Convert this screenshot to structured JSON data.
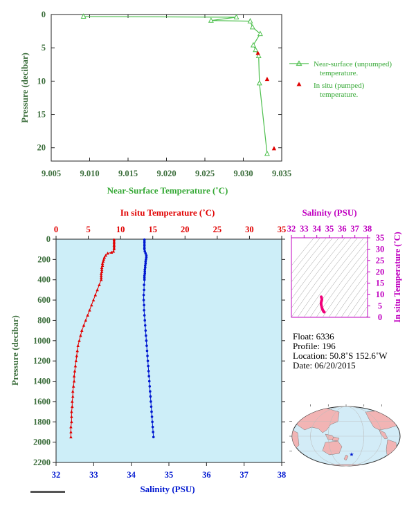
{
  "chart_data": [
    {
      "type": "line",
      "xlabel": "Near-Surface Temperature (˚C)",
      "ylabel": "Pressure (decibar)",
      "xlim": [
        9.005,
        9.035
      ],
      "ylim": [
        0,
        22
      ],
      "xticks": [
        "9.005",
        "9.010",
        "9.015",
        "9.020",
        "9.025",
        "9.030",
        "9.035"
      ],
      "yticks": [
        "0",
        "5",
        "10",
        "15",
        "20"
      ],
      "y_inverted": true,
      "legend_position": "right",
      "colors": {
        "near_surface": "#4cbf4c",
        "in_situ": "#e00000",
        "axis_text": "#3c6e3c"
      },
      "series": [
        {
          "name": "Near-surface (unpumped) temperature.",
          "marker": "open-triangle",
          "points": [
            {
              "t": 9.0092,
              "p": 0.3
            },
            {
              "t": 9.0291,
              "p": 0.4
            },
            {
              "t": 9.0258,
              "p": 0.9
            },
            {
              "t": 9.0309,
              "p": 1.0
            },
            {
              "t": 9.0312,
              "p": 1.9
            },
            {
              "t": 9.0322,
              "p": 2.9
            },
            {
              "t": 9.0313,
              "p": 4.6
            },
            {
              "t": 9.0316,
              "p": 5.3
            },
            {
              "t": 9.032,
              "p": 6.2
            },
            {
              "t": 9.0321,
              "p": 10.3
            },
            {
              "t": 9.0331,
              "p": 20.9
            }
          ]
        },
        {
          "name": "In situ (pumped) temperature.",
          "marker": "filled-triangle",
          "points": [
            {
              "t": 9.0319,
              "p": 5.8
            },
            {
              "t": 9.0331,
              "p": 9.7
            },
            {
              "t": 9.034,
              "p": 20.1
            }
          ]
        }
      ]
    },
    {
      "type": "line",
      "xlabel_top": "In situ Temperature (˚C)",
      "xlabel_bottom": "Salinity (PSU)",
      "ylabel": "Pressure (decibar)",
      "temp_lim": [
        0,
        35
      ],
      "temp_ticks": [
        "0",
        "5",
        "10",
        "15",
        "20",
        "25",
        "30",
        "35"
      ],
      "sal_lim": [
        32,
        38
      ],
      "sal_ticks": [
        "32",
        "33",
        "34",
        "35",
        "36",
        "37",
        "38"
      ],
      "ylim": [
        0,
        2200
      ],
      "yticks": [
        "0",
        "200",
        "400",
        "600",
        "800",
        "1000",
        "1200",
        "1400",
        "1600",
        "1800",
        "2000",
        "2200"
      ],
      "y_inverted": true,
      "plot_background": "#cdeef8",
      "colors": {
        "temperature": "#e00000",
        "salinity": "#0018d0"
      },
      "series": [
        {
          "name": "temperature",
          "axis": "top",
          "points": [
            {
              "v": 9.0,
              "p": 5
            },
            {
              "v": 9.0,
              "p": 30
            },
            {
              "v": 9.0,
              "p": 60
            },
            {
              "v": 9.0,
              "p": 90
            },
            {
              "v": 8.9,
              "p": 120
            },
            {
              "v": 8.6,
              "p": 130
            },
            {
              "v": 8.0,
              "p": 140
            },
            {
              "v": 7.7,
              "p": 160
            },
            {
              "v": 7.5,
              "p": 180
            },
            {
              "v": 7.4,
              "p": 200
            },
            {
              "v": 7.3,
              "p": 220
            },
            {
              "v": 7.2,
              "p": 240
            },
            {
              "v": 7.2,
              "p": 260
            },
            {
              "v": 7.1,
              "p": 280
            },
            {
              "v": 7.1,
              "p": 300
            },
            {
              "v": 7.1,
              "p": 320
            },
            {
              "v": 7.0,
              "p": 340
            },
            {
              "v": 7.0,
              "p": 360
            },
            {
              "v": 7.0,
              "p": 380
            },
            {
              "v": 7.0,
              "p": 400
            },
            {
              "v": 6.7,
              "p": 450
            },
            {
              "v": 6.4,
              "p": 500
            },
            {
              "v": 6.1,
              "p": 550
            },
            {
              "v": 5.8,
              "p": 600
            },
            {
              "v": 5.5,
              "p": 650
            },
            {
              "v": 5.2,
              "p": 700
            },
            {
              "v": 4.9,
              "p": 750
            },
            {
              "v": 4.6,
              "p": 800
            },
            {
              "v": 4.3,
              "p": 850
            },
            {
              "v": 4.0,
              "p": 900
            },
            {
              "v": 3.8,
              "p": 950
            },
            {
              "v": 3.6,
              "p": 1000
            },
            {
              "v": 3.4,
              "p": 1050
            },
            {
              "v": 3.3,
              "p": 1100
            },
            {
              "v": 3.2,
              "p": 1150
            },
            {
              "v": 3.1,
              "p": 1200
            },
            {
              "v": 3.0,
              "p": 1250
            },
            {
              "v": 2.9,
              "p": 1300
            },
            {
              "v": 2.8,
              "p": 1350
            },
            {
              "v": 2.8,
              "p": 1400
            },
            {
              "v": 2.7,
              "p": 1450
            },
            {
              "v": 2.6,
              "p": 1500
            },
            {
              "v": 2.6,
              "p": 1550
            },
            {
              "v": 2.5,
              "p": 1600
            },
            {
              "v": 2.5,
              "p": 1650
            },
            {
              "v": 2.4,
              "p": 1700
            },
            {
              "v": 2.4,
              "p": 1750
            },
            {
              "v": 2.4,
              "p": 1800
            },
            {
              "v": 2.3,
              "p": 1850
            },
            {
              "v": 2.3,
              "p": 1900
            },
            {
              "v": 2.3,
              "p": 1950
            }
          ]
        },
        {
          "name": "salinity",
          "axis": "bottom",
          "points": [
            {
              "v": 34.35,
              "p": 5
            },
            {
              "v": 34.35,
              "p": 30
            },
            {
              "v": 34.35,
              "p": 60
            },
            {
              "v": 34.35,
              "p": 90
            },
            {
              "v": 34.36,
              "p": 120
            },
            {
              "v": 34.38,
              "p": 140
            },
            {
              "v": 34.4,
              "p": 160
            },
            {
              "v": 34.4,
              "p": 180
            },
            {
              "v": 34.39,
              "p": 200
            },
            {
              "v": 34.38,
              "p": 220
            },
            {
              "v": 34.38,
              "p": 240
            },
            {
              "v": 34.37,
              "p": 260
            },
            {
              "v": 34.37,
              "p": 280
            },
            {
              "v": 34.36,
              "p": 300
            },
            {
              "v": 34.36,
              "p": 320
            },
            {
              "v": 34.36,
              "p": 340
            },
            {
              "v": 34.35,
              "p": 360
            },
            {
              "v": 34.35,
              "p": 380
            },
            {
              "v": 34.35,
              "p": 400
            },
            {
              "v": 34.34,
              "p": 450
            },
            {
              "v": 34.34,
              "p": 500
            },
            {
              "v": 34.33,
              "p": 550
            },
            {
              "v": 34.33,
              "p": 600
            },
            {
              "v": 34.34,
              "p": 650
            },
            {
              "v": 34.34,
              "p": 700
            },
            {
              "v": 34.35,
              "p": 750
            },
            {
              "v": 34.36,
              "p": 800
            },
            {
              "v": 34.37,
              "p": 850
            },
            {
              "v": 34.38,
              "p": 900
            },
            {
              "v": 34.39,
              "p": 950
            },
            {
              "v": 34.4,
              "p": 1000
            },
            {
              "v": 34.41,
              "p": 1050
            },
            {
              "v": 34.42,
              "p": 1100
            },
            {
              "v": 34.43,
              "p": 1150
            },
            {
              "v": 34.44,
              "p": 1200
            },
            {
              "v": 34.45,
              "p": 1250
            },
            {
              "v": 34.46,
              "p": 1300
            },
            {
              "v": 34.47,
              "p": 1350
            },
            {
              "v": 34.48,
              "p": 1400
            },
            {
              "v": 34.49,
              "p": 1450
            },
            {
              "v": 34.5,
              "p": 1500
            },
            {
              "v": 34.51,
              "p": 1550
            },
            {
              "v": 34.52,
              "p": 1600
            },
            {
              "v": 34.53,
              "p": 1650
            },
            {
              "v": 34.54,
              "p": 1700
            },
            {
              "v": 34.55,
              "p": 1750
            },
            {
              "v": 34.56,
              "p": 1800
            },
            {
              "v": 34.57,
              "p": 1850
            },
            {
              "v": 34.58,
              "p": 1900
            },
            {
              "v": 34.59,
              "p": 1950
            }
          ]
        }
      ]
    },
    {
      "type": "scatter",
      "xlabel": "Salinity (PSU)",
      "ylabel": "In situ Temperature (˚C)",
      "xlim": [
        32,
        38
      ],
      "ylim": [
        0,
        35
      ],
      "xticks": [
        "32",
        "33",
        "34",
        "35",
        "36",
        "37",
        "38"
      ],
      "yticks": [
        "0",
        "5",
        "10",
        "15",
        "20",
        "25",
        "30",
        "35"
      ],
      "colors": {
        "points": "#f0007a",
        "axes": "#c000c0"
      },
      "points": [
        {
          "s": 34.35,
          "t": 9.0
        },
        {
          "s": 34.38,
          "t": 8.5
        },
        {
          "s": 34.4,
          "t": 7.8
        },
        {
          "s": 34.38,
          "t": 7.3
        },
        {
          "s": 34.36,
          "t": 7.0
        },
        {
          "s": 34.34,
          "t": 6.4
        },
        {
          "s": 34.34,
          "t": 5.8
        },
        {
          "s": 34.36,
          "t": 5.2
        },
        {
          "s": 34.4,
          "t": 4.3
        },
        {
          "s": 34.44,
          "t": 3.6
        },
        {
          "s": 34.48,
          "t": 3.1
        },
        {
          "s": 34.52,
          "t": 2.7
        },
        {
          "s": 34.56,
          "t": 2.4
        },
        {
          "s": 34.59,
          "t": 2.3
        }
      ]
    }
  ],
  "float_info": {
    "float": "Float:  6336",
    "profile": "Profile:  196",
    "location": "Location:  50.8˚S  152.6˚W",
    "date": "Date:  06/20/2015"
  },
  "map": {
    "marker_icon": "star-icon",
    "ocean_color": "#d3ecf7",
    "land_color": "#f2b4b4",
    "marker_color": "#0018d0"
  }
}
